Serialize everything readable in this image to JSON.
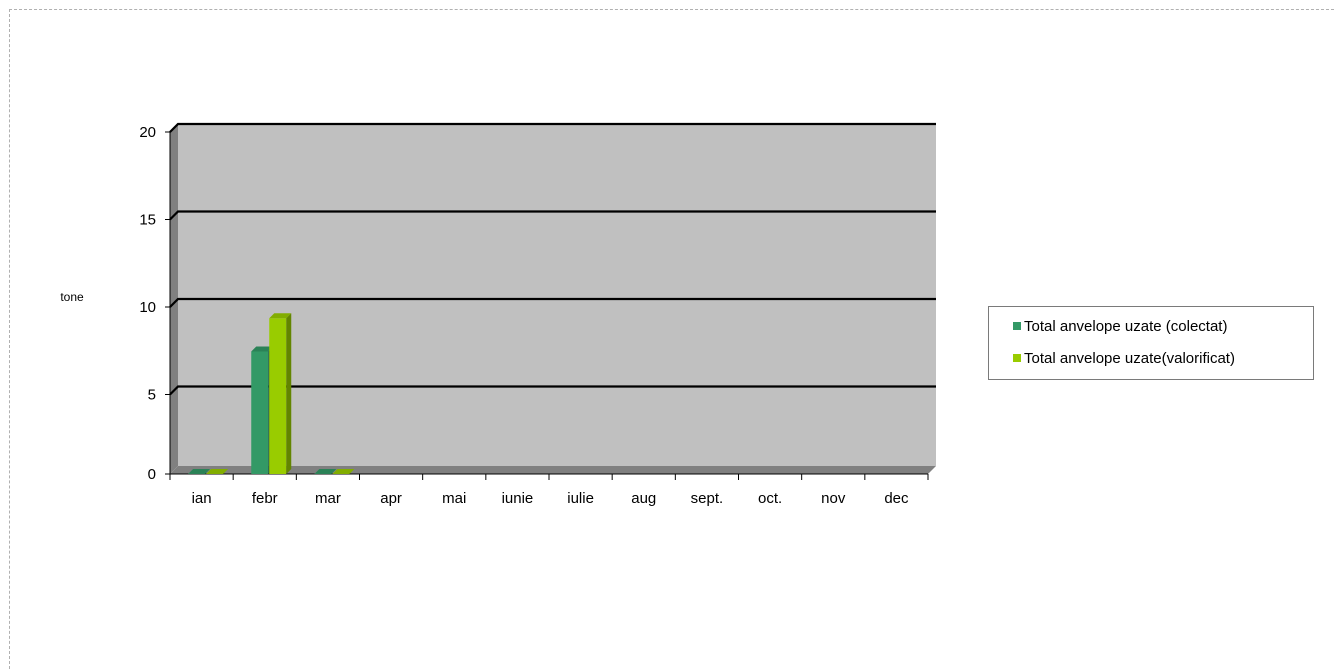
{
  "chart_data": {
    "type": "bar",
    "title": "",
    "xlabel": "",
    "ylabel": "tone",
    "ylim": [
      0,
      20
    ],
    "yticks": [
      0,
      5,
      10,
      15,
      20
    ],
    "categories": [
      "ian",
      "febr",
      "mar",
      "apr",
      "mai",
      "iunie",
      "iulie",
      "aug",
      "sept.",
      "oct.",
      "nov",
      "dec"
    ],
    "series": [
      {
        "name": "Total anvelope uzate (colectat)",
        "color": "#339966",
        "values": [
          0,
          7,
          0,
          null,
          null,
          null,
          null,
          null,
          null,
          null,
          null,
          null
        ]
      },
      {
        "name": "Total anvelope uzate(valorificat)",
        "color": "#99cc00",
        "values": [
          0,
          8.9,
          0,
          null,
          null,
          null,
          null,
          null,
          null,
          null,
          null,
          null
        ]
      }
    ],
    "grid": true,
    "legend_position": "right",
    "plot_color": "#c0c0c0"
  }
}
